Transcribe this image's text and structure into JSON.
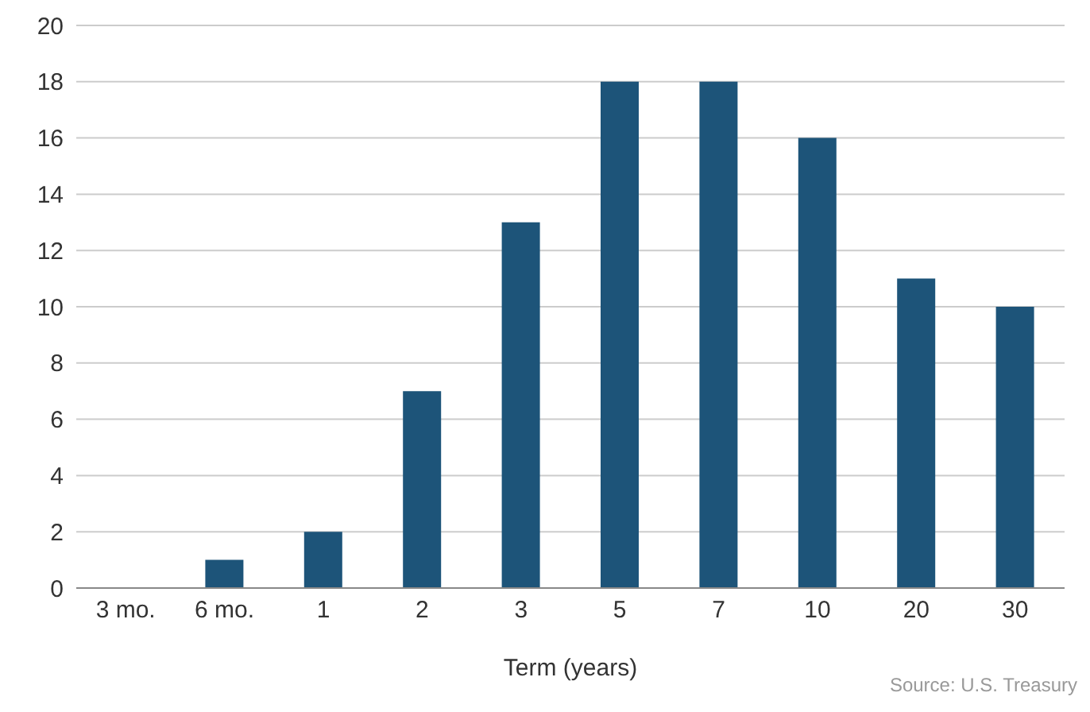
{
  "chart_data": {
    "type": "bar",
    "xlabel": "Term (years)",
    "categories": [
      "3 mo.",
      "6 mo.",
      "1",
      "2",
      "3",
      "5",
      "7",
      "10",
      "20",
      "30"
    ],
    "values": [
      0,
      1,
      2,
      7,
      13,
      18,
      18,
      16,
      11,
      10
    ],
    "color": "#1d5479",
    "ylim": [
      0,
      20
    ],
    "yticks": [
      0,
      2,
      4,
      6,
      8,
      10,
      12,
      14,
      16,
      18,
      20
    ],
    "grid": "y",
    "annotations": [
      "Source: U.S. Treasury"
    ]
  }
}
